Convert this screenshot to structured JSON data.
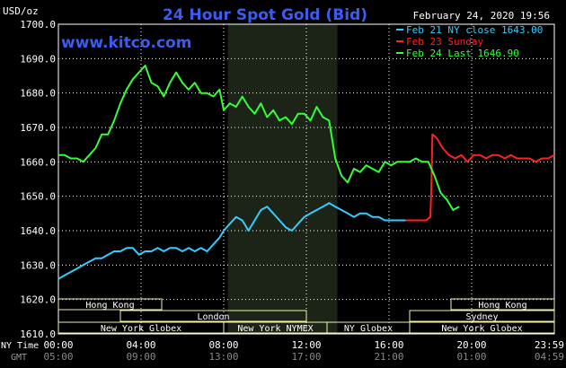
{
  "header": {
    "unit": "USD/oz",
    "title": "24 Hour Spot Gold (Bid)",
    "datetime": "February 24, 2020 19:56",
    "watermark": "www.kitco.com"
  },
  "legend": [
    {
      "text": "Feb 21 NY close 1643.00",
      "color": "#33ccff"
    },
    {
      "text": "Feb 23 Sunday",
      "color": "#ff2020"
    },
    {
      "text": "Feb 24 Last 1646.90",
      "color": "#33ff33"
    }
  ],
  "bottom_labels": {
    "ny_time": "NY Time",
    "gmt": "GMT",
    "ny_ticks": [
      "00:00",
      "04:00",
      "08:00",
      "12:00",
      "16:00",
      "20:00",
      "23:59"
    ],
    "gmt_ticks": [
      "05:00",
      "09:00",
      "13:00",
      "17:00",
      "21:00",
      "01:00",
      "04:59"
    ]
  },
  "sessions": [
    {
      "label": "Hong Kong",
      "row": 0,
      "from": 0,
      "to": 5
    },
    {
      "label": "Hong Kong",
      "row": 0,
      "from": 19,
      "to": 24
    },
    {
      "label": "London",
      "row": 1,
      "from": 3,
      "to": 12
    },
    {
      "label": "Sydney",
      "row": 1,
      "from": 17,
      "to": 24
    },
    {
      "label": "New York Globex",
      "row": 2,
      "from": 0,
      "to": 8
    },
    {
      "label": "New York NYMEX",
      "row": 2,
      "from": 8,
      "to": 13
    },
    {
      "label": "NY Globex",
      "row": 2,
      "from": 13,
      "to": 17
    },
    {
      "label": "New York Globex",
      "row": 2,
      "from": 17,
      "to": 24
    }
  ],
  "colors": {
    "background": "#000000",
    "grid": "#ffffff",
    "title": "#3a5cf0",
    "watermark": "#3a5cf0",
    "axis_text": "#ffffff",
    "nymex_band": "#1c2418",
    "session_box": "#f4f0a8"
  },
  "chart_data": {
    "type": "line",
    "title": "24 Hour Spot Gold (Bid)",
    "xlabel": "NY Time",
    "ylabel": "USD/oz",
    "xlim": [
      0,
      24
    ],
    "ylim": [
      1610,
      1700
    ],
    "yticks": [
      1610.0,
      1620.0,
      1630.0,
      1640.0,
      1650.0,
      1660.0,
      1670.0,
      1680.0,
      1690.0,
      1700.0
    ],
    "ytick_labels": [
      "1610.0",
      "1620.0",
      "1630.0",
      "1640.0",
      "1650.0",
      "1660.0",
      "1670.0",
      "1680.0",
      "1690.0",
      "1700.0"
    ],
    "grid": true,
    "legend_position": "top-right",
    "series": [
      {
        "name": "Feb 21 NY close 1643.00",
        "color": "#33ccff",
        "x": [
          0,
          0.3,
          0.6,
          0.9,
          1.2,
          1.5,
          1.8,
          2.1,
          2.4,
          2.7,
          3.0,
          3.3,
          3.6,
          3.9,
          4.2,
          4.5,
          4.8,
          5.1,
          5.4,
          5.7,
          6.0,
          6.3,
          6.6,
          6.9,
          7.2,
          7.5,
          7.8,
          8.0,
          8.3,
          8.6,
          8.9,
          9.2,
          9.5,
          9.8,
          10.1,
          10.4,
          10.7,
          11.0,
          11.3,
          11.6,
          11.9,
          12.2,
          12.5,
          12.8,
          13.1,
          13.4,
          13.7,
          14.0,
          14.3,
          14.6,
          14.9,
          15.2,
          15.5,
          15.8,
          16.1,
          16.4,
          16.7,
          17.0
        ],
        "y": [
          1626,
          1627,
          1628,
          1629,
          1630,
          1631,
          1632,
          1632,
          1633,
          1634,
          1634,
          1635,
          1635,
          1633,
          1634,
          1634,
          1635,
          1634,
          1635,
          1635,
          1634,
          1635,
          1634,
          1635,
          1634,
          1636,
          1638,
          1640,
          1642,
          1644,
          1643,
          1640,
          1643,
          1646,
          1647,
          1645,
          1643,
          1641,
          1640,
          1642,
          1644,
          1645,
          1646,
          1647,
          1648,
          1647,
          1646,
          1645,
          1644,
          1645,
          1645,
          1644,
          1644,
          1643,
          1643,
          1643,
          1643,
          1643
        ]
      },
      {
        "name": "Feb 23 Sunday",
        "color": "#ff2020",
        "x": [
          16.8,
          17.0,
          17.8,
          18.0,
          18.05,
          18.1,
          18.3,
          18.6,
          18.9,
          19.2,
          19.5,
          19.8,
          20.1,
          20.4,
          20.7,
          21.0,
          21.3,
          21.6,
          21.9,
          22.2,
          22.5,
          22.8,
          23.1,
          23.4,
          23.7,
          24.0
        ],
        "y": [
          1643,
          1643,
          1643,
          1644,
          1652,
          1668,
          1667,
          1664,
          1662,
          1661,
          1662,
          1660,
          1662,
          1662,
          1661,
          1662,
          1662,
          1661,
          1662,
          1661,
          1661,
          1661,
          1660,
          1661,
          1661,
          1662
        ]
      },
      {
        "name": "Feb 24 Last 1646.90",
        "color": "#33ff33",
        "x": [
          0,
          0.3,
          0.6,
          0.9,
          1.2,
          1.5,
          1.8,
          2.1,
          2.4,
          2.7,
          3.0,
          3.3,
          3.6,
          3.9,
          4.2,
          4.5,
          4.8,
          5.1,
          5.4,
          5.7,
          6.0,
          6.3,
          6.6,
          6.9,
          7.2,
          7.5,
          7.8,
          8.0,
          8.3,
          8.6,
          8.9,
          9.2,
          9.5,
          9.8,
          10.1,
          10.4,
          10.7,
          11.0,
          11.3,
          11.6,
          11.9,
          12.2,
          12.5,
          12.8,
          13.1,
          13.4,
          13.7,
          14.0,
          14.3,
          14.6,
          14.9,
          15.2,
          15.5,
          15.8,
          16.1,
          16.4,
          16.7,
          17.0,
          17.3,
          17.6,
          17.9,
          18.2,
          18.5,
          18.8,
          19.1,
          19.4
        ],
        "y": [
          1662,
          1662,
          1661,
          1661,
          1660,
          1662,
          1664,
          1668,
          1668,
          1672,
          1677,
          1681,
          1684,
          1686,
          1688,
          1683,
          1682,
          1679,
          1683,
          1686,
          1683,
          1681,
          1683,
          1680,
          1680,
          1679,
          1681,
          1675,
          1677,
          1676,
          1679,
          1676,
          1674,
          1677,
          1673,
          1675,
          1672,
          1673,
          1671,
          1674,
          1674,
          1672,
          1676,
          1673,
          1672,
          1661,
          1656,
          1654,
          1658,
          1657,
          1659,
          1658,
          1657,
          1660,
          1659,
          1660,
          1660,
          1660,
          1661,
          1660,
          1660,
          1656,
          1651,
          1649,
          1646,
          1647
        ]
      }
    ]
  }
}
